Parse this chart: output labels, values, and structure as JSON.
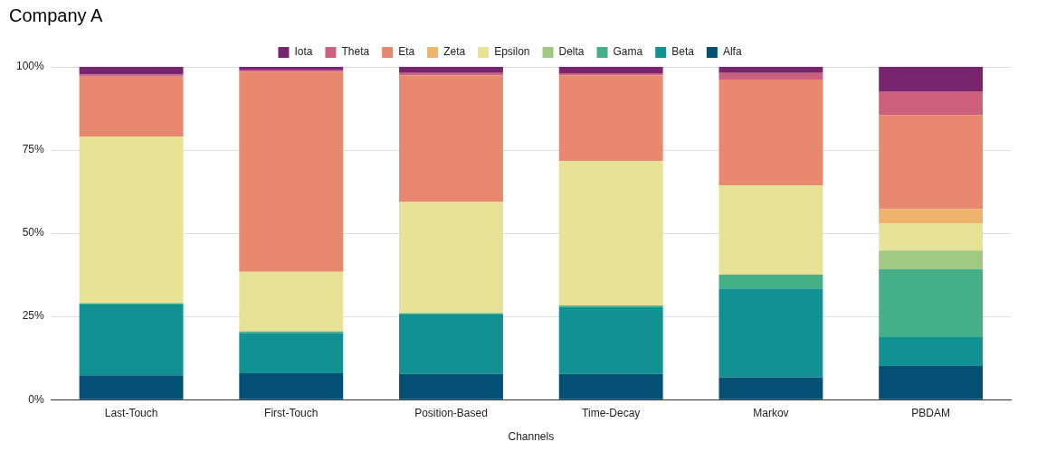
{
  "chart_data": {
    "type": "bar",
    "title": "Company A",
    "xlabel": "Channels",
    "stacked": true,
    "legend": "top",
    "grid": "y",
    "categories": [
      "Last-Touch",
      "First-Touch",
      "Position-Based",
      "Time-Decay",
      "Markov",
      "PBDAM"
    ],
    "ylim": [
      0,
      100
    ],
    "yticks": [
      {
        "value": 0,
        "label": "0%"
      },
      {
        "value": 25,
        "label": "25%"
      },
      {
        "value": 50,
        "label": "50%"
      },
      {
        "value": 75,
        "label": "75%"
      },
      {
        "value": 100,
        "label": "100%"
      }
    ],
    "series": [
      {
        "name": "Alfa",
        "color": "#025074",
        "values": [
          7.3,
          7.9,
          7.7,
          7.7,
          6.7,
          10.1
        ]
      },
      {
        "name": "Beta",
        "color": "#129192",
        "values": [
          21.3,
          12.1,
          17.9,
          20.2,
          26.7,
          8.7
        ]
      },
      {
        "name": "Gama",
        "color": "#45b087",
        "values": [
          0.4,
          0.5,
          0.4,
          0.4,
          4.2,
          20.4
        ]
      },
      {
        "name": "Delta",
        "color": "#9fc981",
        "values": [
          0,
          0,
          0,
          0,
          0,
          5.6
        ]
      },
      {
        "name": "Epsilon",
        "color": "#e8e296",
        "values": [
          50.1,
          17.9,
          33.4,
          43.4,
          26.8,
          8.2
        ]
      },
      {
        "name": "Zeta",
        "color": "#eeb46e",
        "values": [
          0,
          0,
          0,
          0,
          0,
          4.2
        ]
      },
      {
        "name": "Eta",
        "color": "#e8886e",
        "values": [
          18.0,
          60.1,
          38.1,
          25.7,
          31.8,
          28.3
        ]
      },
      {
        "name": "Theta",
        "color": "#cc607d",
        "values": [
          0.6,
          0.5,
          0.7,
          0.7,
          2.0,
          7.2
        ]
      },
      {
        "name": "Iota",
        "color": "#78246f",
        "values": [
          2.3,
          1.0,
          1.8,
          1.9,
          1.8,
          7.3
        ]
      }
    ]
  }
}
